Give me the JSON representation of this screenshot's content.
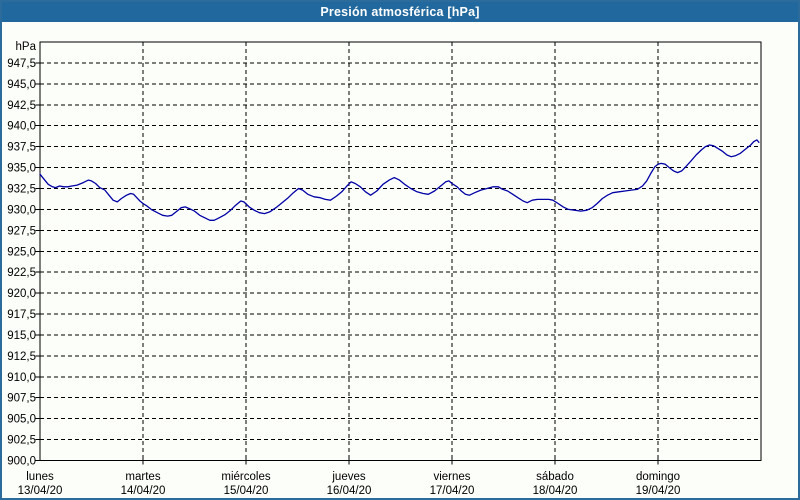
{
  "window": {
    "title": "Presión atmosférica [hPa]"
  },
  "colors": {
    "titlebar_bg": "#20689D",
    "titlebar_text": "#FFFFFF",
    "frame_border": "#2B6C9C",
    "chart_bg": "#FCFEF9",
    "grid": "#000000",
    "series_line": "#0000A6"
  },
  "chart_data": {
    "type": "line",
    "title": "Presión atmosférica [hPa]",
    "y_unit_label": "hPa",
    "ylim": [
      900,
      950
    ],
    "y_tick_step": 2.5,
    "y_tick_labels": [
      "900,0",
      "902,5",
      "905,0",
      "907,5",
      "910,0",
      "912,5",
      "915,0",
      "917,5",
      "920,0",
      "922,5",
      "925,0",
      "927,5",
      "930,0",
      "932,5",
      "935,0",
      "937,5",
      "940,0",
      "942,5",
      "945,0",
      "947,5"
    ],
    "grid": "dashed",
    "legend": "none",
    "x_axis": {
      "unit": "days",
      "range_days": 7,
      "labels": [
        {
          "name": "lunes",
          "date": "13/04/20"
        },
        {
          "name": "martes",
          "date": "14/04/20"
        },
        {
          "name": "miércoles",
          "date": "15/04/20"
        },
        {
          "name": "jueves",
          "date": "16/04/20"
        },
        {
          "name": "viernes",
          "date": "17/04/20"
        },
        {
          "name": "sábado",
          "date": "18/04/20"
        },
        {
          "name": "domingo",
          "date": "19/04/20"
        }
      ]
    },
    "series": [
      {
        "name": "Presión atmosférica",
        "color": "#0000A6",
        "points": [
          [
            0.0,
            934.2
          ],
          [
            0.04,
            933.6
          ],
          [
            0.08,
            933.0
          ],
          [
            0.12,
            932.7
          ],
          [
            0.15,
            932.6
          ],
          [
            0.19,
            932.8
          ],
          [
            0.23,
            932.7
          ],
          [
            0.27,
            932.7
          ],
          [
            0.31,
            932.8
          ],
          [
            0.36,
            932.9
          ],
          [
            0.42,
            933.2
          ],
          [
            0.47,
            933.5
          ],
          [
            0.5,
            933.4
          ],
          [
            0.54,
            933.1
          ],
          [
            0.58,
            932.6
          ],
          [
            0.63,
            932.3
          ],
          [
            0.67,
            931.7
          ],
          [
            0.71,
            931.1
          ],
          [
            0.75,
            930.9
          ],
          [
            0.79,
            931.3
          ],
          [
            0.84,
            931.7
          ],
          [
            0.88,
            931.9
          ],
          [
            0.91,
            931.8
          ],
          [
            0.94,
            931.4
          ],
          [
            0.97,
            931.0
          ],
          [
            1.0,
            930.7
          ],
          [
            1.04,
            930.4
          ],
          [
            1.08,
            930.0
          ],
          [
            1.14,
            929.6
          ],
          [
            1.19,
            929.3
          ],
          [
            1.24,
            929.2
          ],
          [
            1.28,
            929.3
          ],
          [
            1.33,
            929.8
          ],
          [
            1.37,
            930.2
          ],
          [
            1.41,
            930.3
          ],
          [
            1.45,
            930.1
          ],
          [
            1.5,
            929.8
          ],
          [
            1.55,
            929.3
          ],
          [
            1.6,
            929.0
          ],
          [
            1.65,
            928.7
          ],
          [
            1.69,
            928.7
          ],
          [
            1.74,
            929.0
          ],
          [
            1.8,
            929.4
          ],
          [
            1.85,
            929.9
          ],
          [
            1.9,
            930.5
          ],
          [
            1.95,
            931.0
          ],
          [
            1.98,
            930.9
          ],
          [
            2.03,
            930.3
          ],
          [
            2.08,
            929.9
          ],
          [
            2.13,
            929.6
          ],
          [
            2.18,
            929.5
          ],
          [
            2.23,
            929.7
          ],
          [
            2.29,
            930.2
          ],
          [
            2.35,
            930.8
          ],
          [
            2.41,
            931.4
          ],
          [
            2.46,
            932.0
          ],
          [
            2.51,
            932.5
          ],
          [
            2.55,
            932.3
          ],
          [
            2.6,
            931.8
          ],
          [
            2.66,
            931.5
          ],
          [
            2.72,
            931.4
          ],
          [
            2.77,
            931.2
          ],
          [
            2.82,
            931.1
          ],
          [
            2.88,
            931.6
          ],
          [
            2.93,
            932.1
          ],
          [
            2.98,
            932.8
          ],
          [
            3.02,
            933.3
          ],
          [
            3.06,
            933.1
          ],
          [
            3.11,
            932.7
          ],
          [
            3.16,
            932.1
          ],
          [
            3.21,
            931.7
          ],
          [
            3.27,
            932.2
          ],
          [
            3.33,
            933.0
          ],
          [
            3.39,
            933.5
          ],
          [
            3.44,
            933.8
          ],
          [
            3.49,
            933.5
          ],
          [
            3.54,
            933.0
          ],
          [
            3.6,
            932.5
          ],
          [
            3.66,
            932.1
          ],
          [
            3.72,
            931.9
          ],
          [
            3.77,
            931.8
          ],
          [
            3.83,
            932.2
          ],
          [
            3.89,
            932.8
          ],
          [
            3.94,
            933.3
          ],
          [
            3.97,
            933.4
          ],
          [
            4.0,
            933.1
          ],
          [
            4.05,
            932.7
          ],
          [
            4.09,
            932.2
          ],
          [
            4.13,
            931.8
          ],
          [
            4.17,
            931.7
          ],
          [
            4.22,
            932.0
          ],
          [
            4.28,
            932.3
          ],
          [
            4.34,
            932.5
          ],
          [
            4.4,
            932.7
          ],
          [
            4.45,
            932.7
          ],
          [
            4.49,
            932.4
          ],
          [
            4.54,
            932.2
          ],
          [
            4.59,
            931.8
          ],
          [
            4.64,
            931.4
          ],
          [
            4.69,
            931.0
          ],
          [
            4.73,
            930.8
          ],
          [
            4.78,
            931.1
          ],
          [
            4.83,
            931.2
          ],
          [
            4.89,
            931.2
          ],
          [
            4.94,
            931.2
          ],
          [
            4.98,
            931.1
          ],
          [
            5.03,
            930.7
          ],
          [
            5.08,
            930.3
          ],
          [
            5.13,
            930.0
          ],
          [
            5.19,
            929.9
          ],
          [
            5.25,
            929.8
          ],
          [
            5.31,
            929.9
          ],
          [
            5.36,
            930.2
          ],
          [
            5.41,
            930.7
          ],
          [
            5.46,
            931.3
          ],
          [
            5.51,
            931.7
          ],
          [
            5.56,
            932.0
          ],
          [
            5.62,
            932.1
          ],
          [
            5.68,
            932.2
          ],
          [
            5.74,
            932.3
          ],
          [
            5.8,
            932.4
          ],
          [
            5.85,
            932.8
          ],
          [
            5.89,
            933.4
          ],
          [
            5.93,
            934.3
          ],
          [
            5.97,
            935.1
          ],
          [
            6.0,
            935.4
          ],
          [
            6.03,
            935.5
          ],
          [
            6.07,
            935.4
          ],
          [
            6.11,
            935.0
          ],
          [
            6.15,
            934.6
          ],
          [
            6.19,
            934.4
          ],
          [
            6.23,
            934.6
          ],
          [
            6.27,
            935.1
          ],
          [
            6.32,
            935.8
          ],
          [
            6.37,
            936.5
          ],
          [
            6.42,
            937.1
          ],
          [
            6.46,
            937.5
          ],
          [
            6.5,
            937.7
          ],
          [
            6.54,
            937.6
          ],
          [
            6.58,
            937.3
          ],
          [
            6.63,
            936.9
          ],
          [
            6.67,
            936.5
          ],
          [
            6.71,
            936.3
          ],
          [
            6.75,
            936.4
          ],
          [
            6.8,
            936.7
          ],
          [
            6.85,
            937.2
          ],
          [
            6.9,
            937.7
          ],
          [
            6.93,
            938.1
          ],
          [
            6.96,
            938.3
          ],
          [
            6.98,
            938.0
          ]
        ]
      }
    ]
  }
}
